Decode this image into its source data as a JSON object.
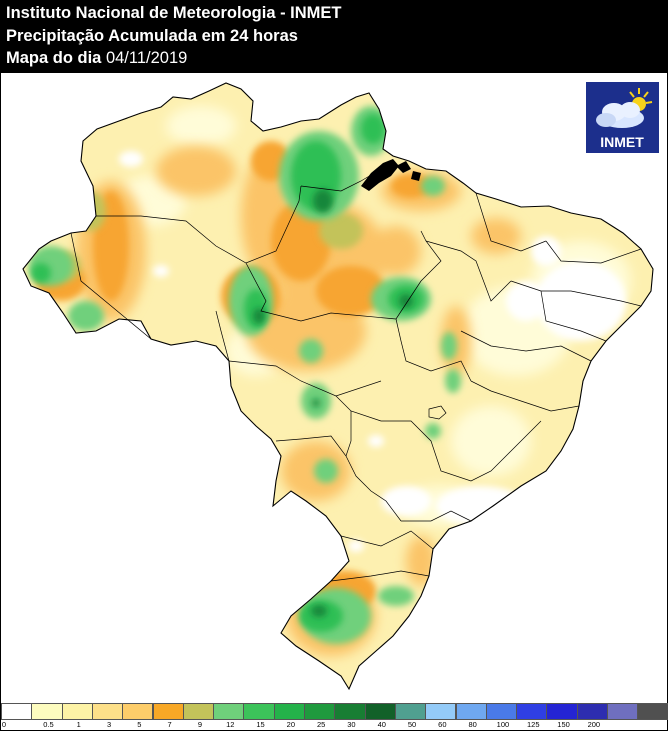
{
  "header": {
    "line1": "Instituto Nacional de Meteorologia - INMET",
    "line2": "Precipitação Acumulada em 24 horas",
    "line3_prefix": "Mapa do dia",
    "line3_date": "04/11/2019"
  },
  "logo": {
    "text": "INMET",
    "icon": "sun-cloud-icon",
    "bg_color": "#1c2f8c"
  },
  "legend": {
    "colors": [
      "#ffffff",
      "#fdfcbf",
      "#fdf3a6",
      "#fde089",
      "#fdcd6a",
      "#f8a826",
      "#c3c35a",
      "#6fd07b",
      "#3cc35a",
      "#24b24a",
      "#1f9a3e",
      "#187e33",
      "#126129",
      "#50a090",
      "#94cbf8",
      "#6fa8f0",
      "#4a7ae8",
      "#2f3fe4",
      "#2424d4",
      "#2d2db0",
      "#6f6fbf",
      "#505050"
    ],
    "ticks": [
      "0",
      "0.5",
      "1",
      "3",
      "5",
      "7",
      "9",
      "12",
      "15",
      "20",
      "25",
      "30",
      "40",
      "50",
      "60",
      "80",
      "100",
      "125",
      "150",
      "200"
    ]
  },
  "map": {
    "colors": {
      "background": "#ffffff",
      "base": "#fdf0b0",
      "light": "#fffcd8",
      "orange": "#fbc468",
      "deep_orange": "#f7a531",
      "olive": "#c3c35a",
      "light_green": "#6fd07b",
      "green": "#2fbf55",
      "dark_green": "#13863a",
      "boundary": "#000000"
    }
  }
}
